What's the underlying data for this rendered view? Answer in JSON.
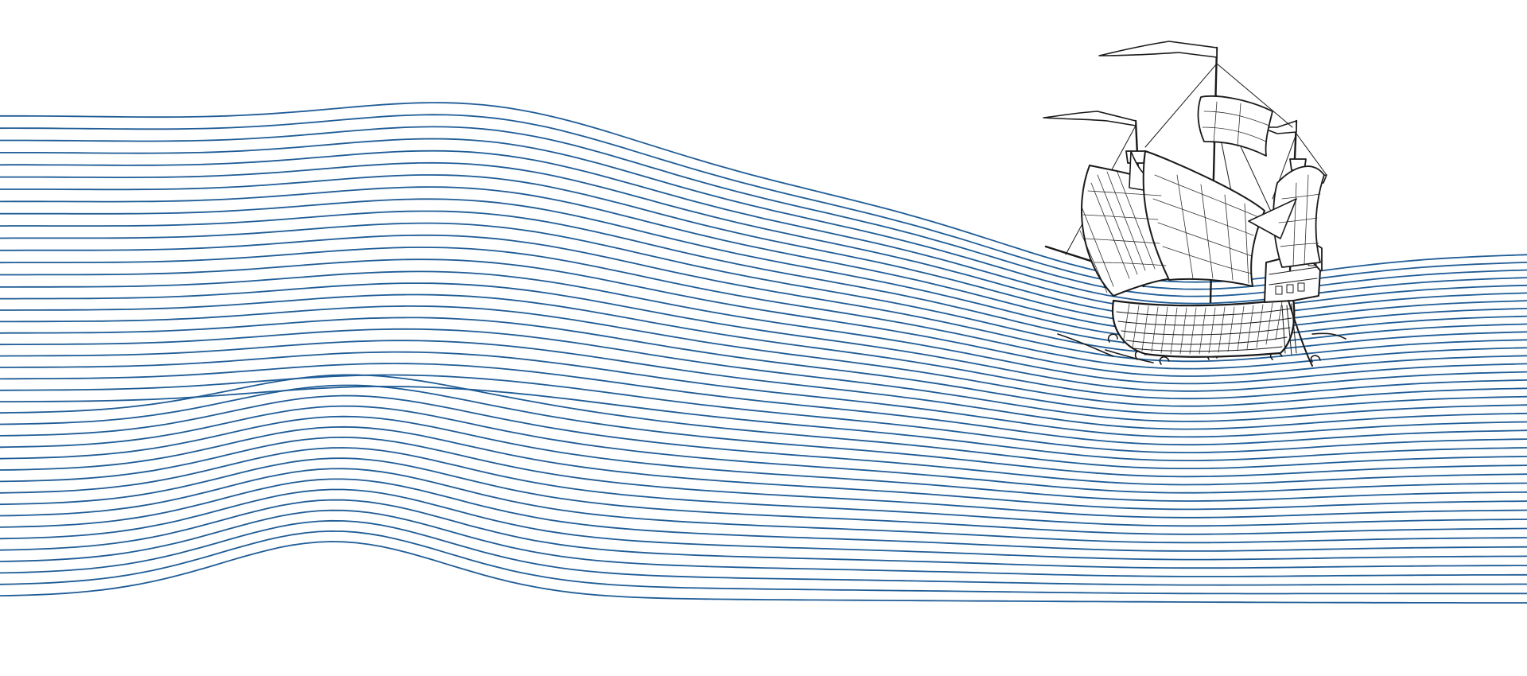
{
  "illustration": {
    "subject": "ship-on-waves",
    "colors": {
      "background": "#ffffff",
      "wave_lines": "#1f5c96",
      "ship_ink": "#1a1a1a",
      "sail_fill": "#ffffff"
    },
    "wave_line_count": 42
  }
}
